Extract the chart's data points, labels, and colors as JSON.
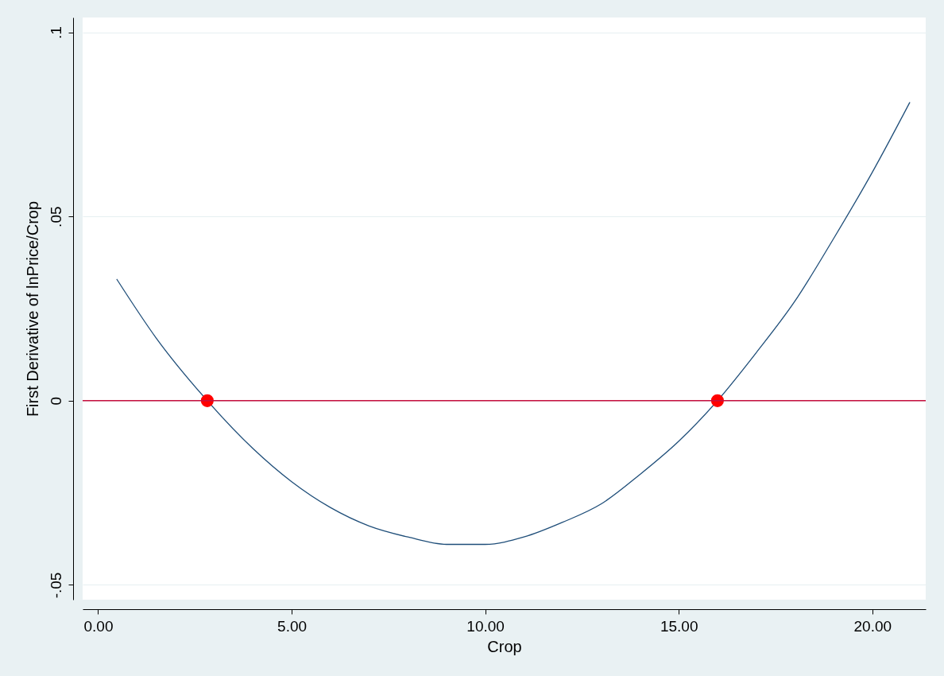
{
  "chart_data": {
    "type": "line",
    "xlabel": "Crop",
    "ylabel": "First Derivative of lnPrice/Crop",
    "series": [
      {
        "color": "#1f4e79",
        "x": [
          0.48,
          1.5,
          2.82,
          4,
          5,
          6,
          7,
          8,
          9,
          10,
          11,
          12,
          13,
          14,
          15,
          16,
          17,
          18,
          19,
          20,
          20.97
        ],
        "values": [
          0.033,
          0.017,
          0,
          -0.013,
          -0.022,
          -0.029,
          -0.034,
          -0.037,
          -0.039,
          -0.039,
          -0.037,
          -0.033,
          -0.028,
          -0.02,
          -0.011,
          0,
          0.013,
          0.027,
          0.044,
          0.062,
          0.081
        ]
      },
      {
        "type": "scatter",
        "color": "#ff0000",
        "marker": "circle",
        "x": [
          2.82,
          16.0
        ],
        "values": [
          0,
          0
        ]
      }
    ],
    "xlim": [
      -0.4,
      21.38
    ],
    "xticks": [
      {
        "value": 0,
        "label": "0.00"
      },
      {
        "value": 5,
        "label": "5.00"
      },
      {
        "value": 10,
        "label": "10.00"
      },
      {
        "value": 15,
        "label": "15.00"
      },
      {
        "value": 20,
        "label": "20.00"
      }
    ],
    "ylim": [
      -0.054,
      0.104
    ],
    "yticks": [
      {
        "value": -0.05,
        "label": "-.05"
      },
      {
        "value": 0,
        "label": "0"
      },
      {
        "value": 0.05,
        "label": ".05"
      },
      {
        "value": 0.1,
        "label": ".1"
      }
    ],
    "grid": "y",
    "ref_lines": [
      {
        "axis": "y",
        "value": 0,
        "color": "#c8103e"
      }
    ]
  }
}
